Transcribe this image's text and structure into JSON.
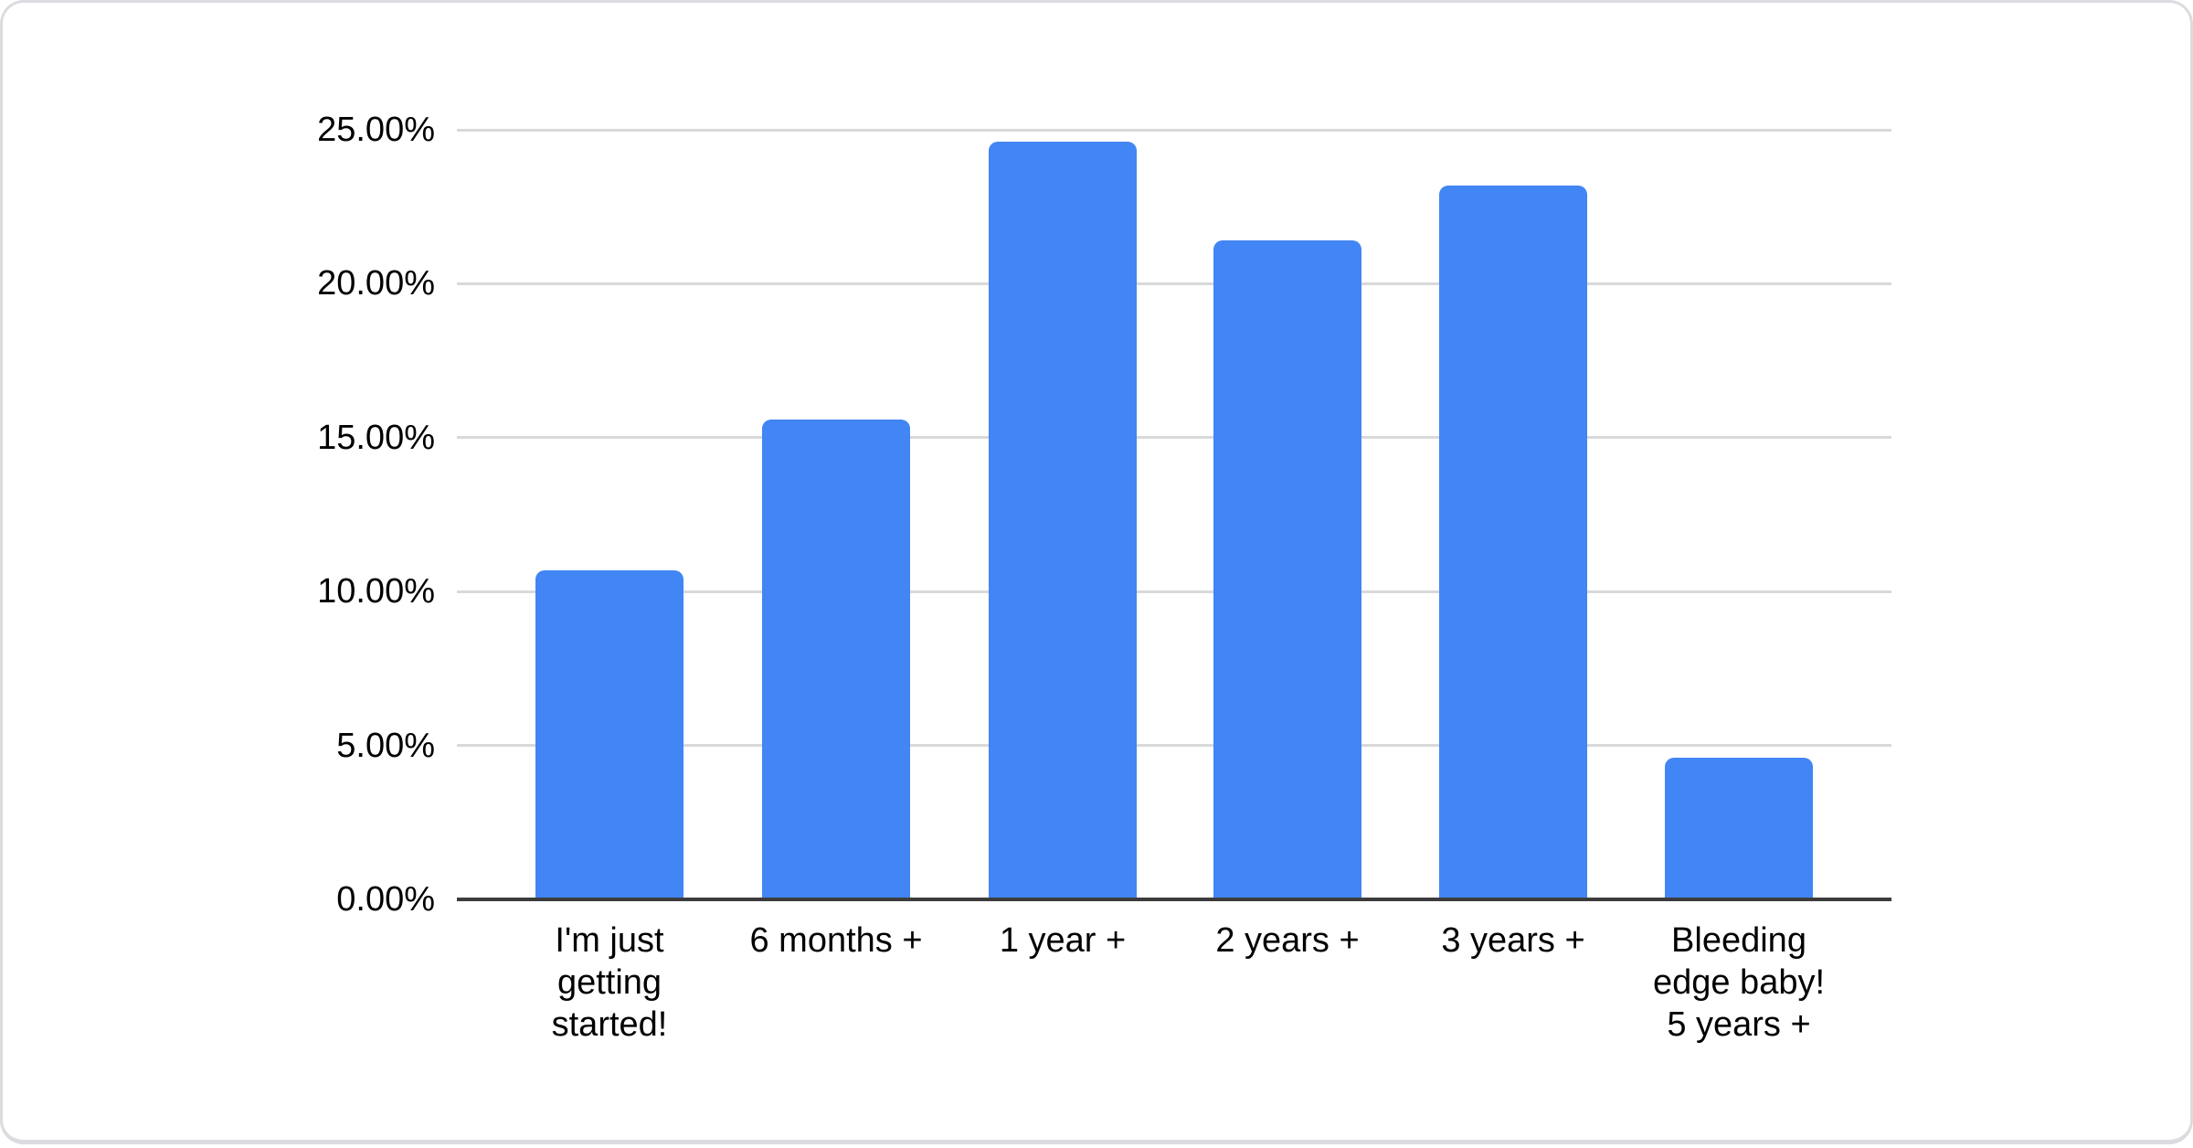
{
  "page": {
    "background_color": "#ffffff",
    "card_background_color": "#ffffff",
    "card_border_color": "#dadce0"
  },
  "chart_data": {
    "type": "bar",
    "title": "",
    "xlabel": "",
    "ylabel": "",
    "categories": [
      "I'm just\ngetting\nstarted!",
      "6 months +",
      "1 year +",
      "2 years +",
      "3 years +",
      "Bleeding\nedge baby!\n5 years +"
    ],
    "values": [
      10.7,
      15.6,
      24.6,
      21.4,
      23.2,
      4.6
    ],
    "value_unit": "%",
    "ylim": [
      0,
      25
    ],
    "y_tick_values": [
      0,
      5,
      10,
      15,
      20,
      25
    ],
    "y_tick_labels": [
      "0.00%",
      "5.00%",
      "10.00%",
      "15.00%",
      "20.00%",
      "25.00%"
    ],
    "grid": true,
    "legend_position": "none",
    "bar_color": "#4285f4",
    "gridline_color": "#d9d9d9",
    "axis_line_color": "#3c3c3c",
    "text_color": "#000000"
  }
}
